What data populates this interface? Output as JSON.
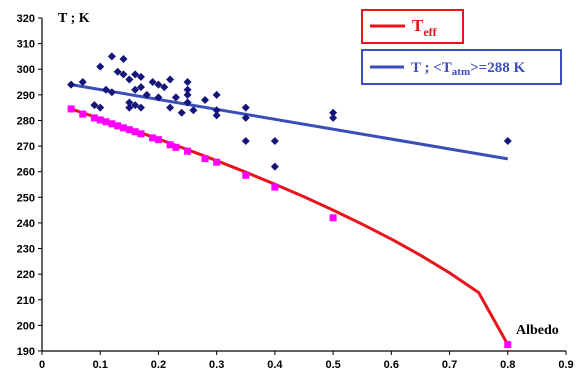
{
  "chart_data": {
    "type": "scatter",
    "ylabel": "T ; K",
    "xlabel": "Albedo",
    "xlim": [
      0,
      0.9
    ],
    "ylim": [
      190,
      320
    ],
    "x_ticks": [
      "0",
      "0.1",
      "0.2",
      "0.3",
      "0.4",
      "0.5",
      "0.6",
      "0.7",
      "0.8",
      "0.9"
    ],
    "y_ticks": [
      "190",
      "200",
      "210",
      "220",
      "230",
      "240",
      "250",
      "260",
      "270",
      "280",
      "290",
      "300",
      "310",
      "320"
    ],
    "grid": false,
    "legend": [
      {
        "label": "T",
        "sub": "eff",
        "color": "#e8141c",
        "placement": "top-right"
      },
      {
        "label": "T ; <T",
        "sub": "atm",
        "suffix": ">=288 K",
        "color": "#3b4db8",
        "placement": "top-right"
      }
    ],
    "series": [
      {
        "kind": "line",
        "color": "#3b4db8",
        "x": [
          0.05,
          0.8
        ],
        "y": [
          294,
          265
        ]
      },
      {
        "kind": "line",
        "color": "#e8141c",
        "x": [
          0.05,
          0.1,
          0.15,
          0.2,
          0.25,
          0.3,
          0.35,
          0.4,
          0.45,
          0.5,
          0.55,
          0.6,
          0.65,
          0.7,
          0.75,
          0.8
        ],
        "y": [
          284.5,
          280.7,
          276.8,
          272.8,
          268.6,
          264.3,
          259.8,
          255.1,
          250.2,
          245.0,
          239.5,
          233.7,
          227.4,
          220.5,
          212.8,
          192.5
        ]
      },
      {
        "kind": "points",
        "marker": "square",
        "color": "#ff00ff",
        "x": [
          0.05,
          0.07,
          0.09,
          0.1,
          0.11,
          0.12,
          0.13,
          0.14,
          0.15,
          0.16,
          0.17,
          0.19,
          0.2,
          0.22,
          0.23,
          0.25,
          0.28,
          0.3,
          0.35,
          0.4,
          0.5,
          0.8
        ],
        "y": [
          284.5,
          282.5,
          281,
          280.2,
          279.5,
          278.7,
          277.9,
          277.1,
          276.4,
          275.6,
          274.8,
          273.2,
          272.5,
          270.5,
          269.5,
          268,
          265.1,
          263.7,
          258.6,
          254,
          242,
          192.5
        ]
      },
      {
        "kind": "points",
        "marker": "diamond",
        "color": "#14147a",
        "x": [
          0.05,
          0.07,
          0.09,
          0.1,
          0.1,
          0.11,
          0.12,
          0.12,
          0.13,
          0.14,
          0.14,
          0.15,
          0.15,
          0.15,
          0.16,
          0.16,
          0.16,
          0.17,
          0.17,
          0.17,
          0.18,
          0.19,
          0.2,
          0.2,
          0.21,
          0.22,
          0.22,
          0.23,
          0.24,
          0.25,
          0.25,
          0.25,
          0.25,
          0.26,
          0.28,
          0.3,
          0.3,
          0.3,
          0.35,
          0.35,
          0.35,
          0.4,
          0.4,
          0.5,
          0.5,
          0.8
        ],
        "y": [
          294,
          295,
          286,
          301,
          285,
          292,
          305,
          291,
          299,
          304,
          298,
          296,
          285,
          287,
          298,
          292,
          286,
          297,
          293,
          285,
          290,
          295,
          289,
          294,
          293,
          296,
          285,
          289,
          283,
          295,
          292,
          290,
          287,
          284,
          288,
          290,
          284,
          282,
          285,
          281,
          272,
          272,
          262,
          283,
          281,
          272
        ]
      }
    ]
  }
}
